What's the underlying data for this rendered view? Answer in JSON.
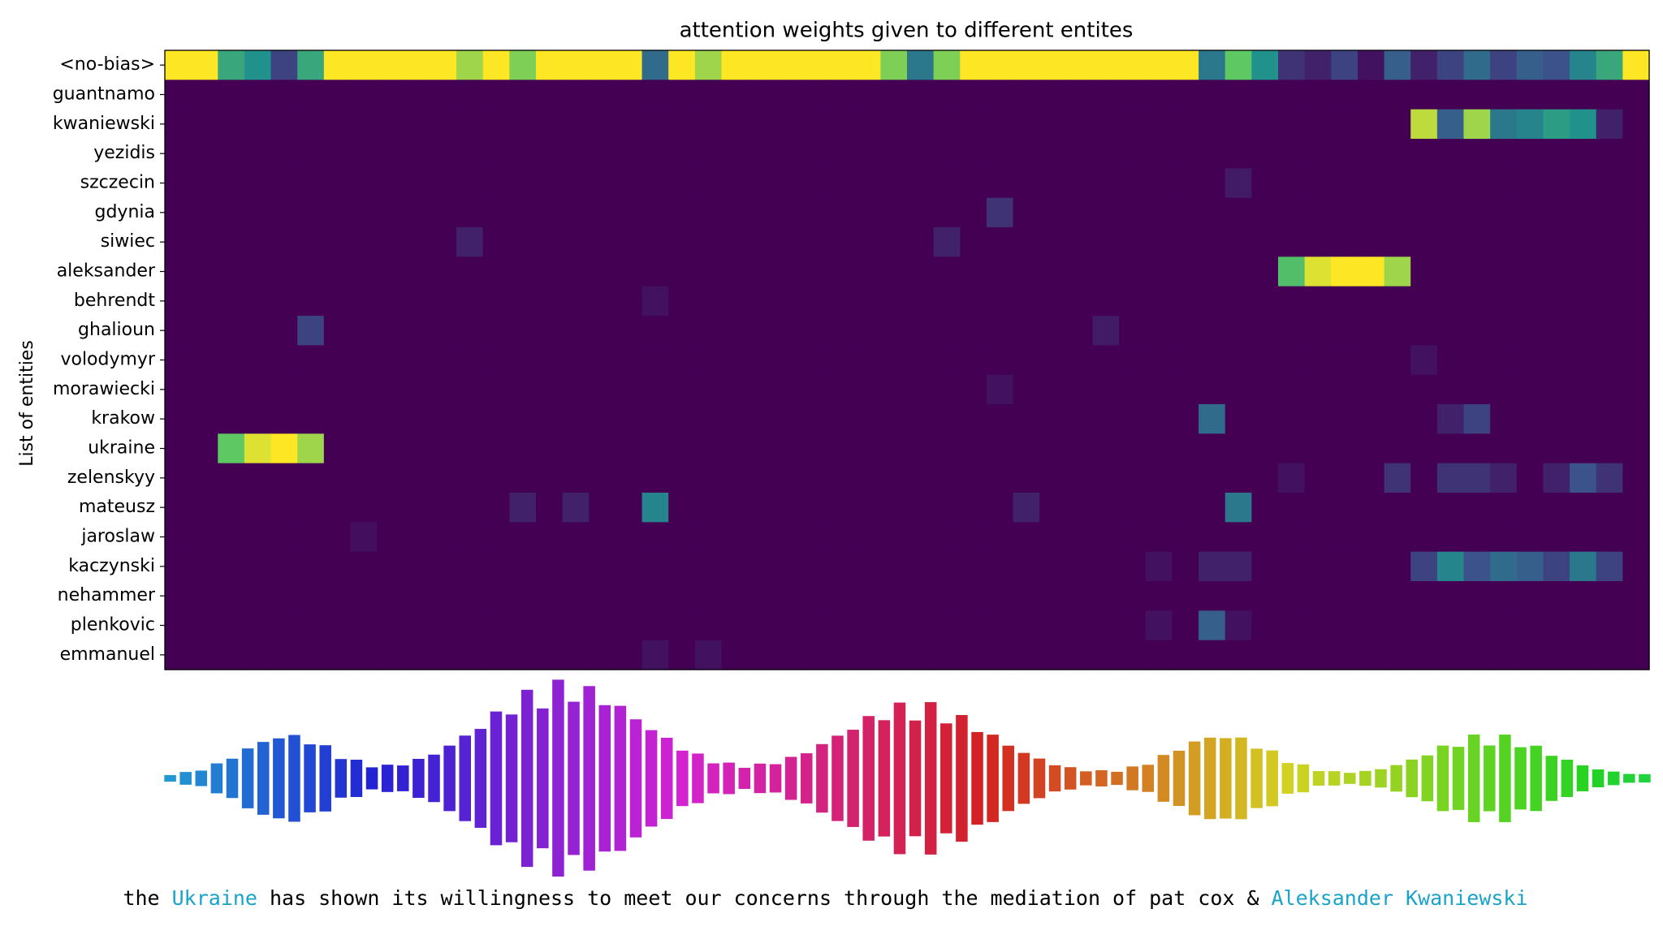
{
  "chart_data": {
    "type": "heatmap",
    "title": "attention weights given to different entites",
    "ylabel": "List of entities",
    "colormap": "viridis",
    "categories": [
      "<no-bias>",
      "guantnamo",
      "kwaniewski",
      "yezidis",
      "szczecin",
      "gdynia",
      "siwiec",
      "aleksander",
      "behrendt",
      "ghalioun",
      "volodymyr",
      "morawiecki",
      "krakow",
      "ukraine",
      "zelenskyy",
      "mateusz",
      "jaroslaw",
      "kaczynski",
      "nehammer",
      "plenkovic",
      "emmanuel"
    ],
    "values": [
      [
        1,
        1,
        0.6,
        0.5,
        0.2,
        0.6,
        1,
        1,
        1,
        1,
        1,
        0.85,
        1,
        0.8,
        1,
        1,
        1,
        1,
        0.35,
        1,
        0.85,
        1,
        1,
        1,
        1,
        1,
        1,
        0.8,
        0.4,
        0.8,
        1,
        1,
        1,
        1,
        1,
        1,
        1,
        1,
        1,
        0.4,
        0.75,
        0.5,
        0.15,
        0.1,
        0.2,
        0.05,
        0.3,
        0.1,
        0.2,
        0.35,
        0.2,
        0.3,
        0.25,
        0.45,
        0.6,
        1
      ],
      [
        0,
        0,
        0,
        0,
        0,
        0,
        0,
        0,
        0,
        0,
        0,
        0,
        0,
        0,
        0,
        0,
        0,
        0,
        0,
        0,
        0,
        0,
        0,
        0,
        0,
        0,
        0,
        0,
        0,
        0,
        0,
        0,
        0,
        0,
        0,
        0,
        0,
        0,
        0,
        0,
        0,
        0,
        0,
        0,
        0,
        0,
        0,
        0,
        0,
        0,
        0,
        0,
        0,
        0,
        0,
        0
      ],
      [
        0,
        0,
        0,
        0,
        0,
        0,
        0,
        0,
        0,
        0,
        0,
        0,
        0,
        0,
        0,
        0,
        0,
        0,
        0,
        0,
        0,
        0,
        0,
        0,
        0,
        0,
        0,
        0,
        0,
        0,
        0,
        0,
        0,
        0,
        0,
        0,
        0,
        0,
        0,
        0,
        0,
        0,
        0,
        0,
        0,
        0,
        0,
        0.9,
        0.3,
        0.85,
        0.4,
        0.45,
        0.55,
        0.5,
        0.1,
        0
      ],
      [
        0,
        0,
        0,
        0,
        0,
        0,
        0,
        0,
        0,
        0,
        0,
        0,
        0,
        0,
        0,
        0,
        0,
        0,
        0,
        0,
        0,
        0,
        0,
        0,
        0,
        0,
        0,
        0,
        0,
        0,
        0,
        0,
        0,
        0,
        0,
        0,
        0,
        0,
        0,
        0,
        0,
        0,
        0,
        0,
        0,
        0,
        0,
        0,
        0,
        0,
        0,
        0,
        0,
        0,
        0,
        0
      ],
      [
        0,
        0,
        0,
        0,
        0,
        0,
        0,
        0,
        0,
        0,
        0,
        0,
        0,
        0,
        0,
        0,
        0,
        0,
        0,
        0,
        0,
        0,
        0,
        0,
        0,
        0,
        0,
        0,
        0,
        0,
        0,
        0,
        0,
        0,
        0,
        0,
        0,
        0,
        0,
        0,
        0.08,
        0,
        0,
        0,
        0,
        0,
        0,
        0,
        0,
        0,
        0,
        0,
        0,
        0,
        0,
        0
      ],
      [
        0,
        0,
        0,
        0,
        0,
        0,
        0,
        0,
        0,
        0,
        0,
        0,
        0,
        0,
        0,
        0,
        0,
        0,
        0,
        0,
        0,
        0,
        0,
        0,
        0,
        0,
        0,
        0,
        0,
        0,
        0,
        0.15,
        0,
        0,
        0,
        0,
        0,
        0,
        0,
        0,
        0,
        0,
        0,
        0,
        0,
        0,
        0,
        0,
        0,
        0,
        0,
        0,
        0,
        0,
        0,
        0
      ],
      [
        0,
        0,
        0,
        0,
        0,
        0,
        0,
        0,
        0,
        0,
        0,
        0.1,
        0,
        0,
        0,
        0,
        0,
        0,
        0,
        0,
        0,
        0,
        0,
        0,
        0,
        0,
        0,
        0,
        0,
        0.1,
        0,
        0,
        0,
        0,
        0,
        0,
        0,
        0,
        0,
        0,
        0,
        0,
        0,
        0,
        0,
        0,
        0,
        0,
        0,
        0,
        0,
        0,
        0,
        0,
        0,
        0
      ],
      [
        0,
        0,
        0,
        0,
        0,
        0,
        0,
        0,
        0,
        0,
        0,
        0,
        0,
        0,
        0,
        0,
        0,
        0,
        0,
        0,
        0,
        0,
        0,
        0,
        0,
        0,
        0,
        0,
        0,
        0,
        0,
        0,
        0,
        0,
        0,
        0,
        0,
        0,
        0,
        0,
        0,
        0,
        0.7,
        0.95,
        1,
        1,
        0.85,
        0,
        0,
        0,
        0,
        0,
        0,
        0,
        0,
        0
      ],
      [
        0,
        0,
        0,
        0,
        0,
        0,
        0,
        0,
        0,
        0,
        0,
        0,
        0,
        0,
        0,
        0,
        0,
        0,
        0.05,
        0,
        0,
        0,
        0,
        0,
        0,
        0,
        0,
        0,
        0,
        0,
        0,
        0,
        0,
        0,
        0,
        0,
        0,
        0,
        0,
        0,
        0,
        0,
        0,
        0,
        0,
        0,
        0,
        0,
        0,
        0,
        0,
        0,
        0,
        0,
        0,
        0
      ],
      [
        0,
        0,
        0,
        0,
        0,
        0.2,
        0,
        0,
        0,
        0,
        0,
        0,
        0,
        0,
        0,
        0,
        0,
        0,
        0,
        0,
        0,
        0,
        0,
        0,
        0,
        0,
        0,
        0,
        0,
        0,
        0,
        0,
        0,
        0,
        0,
        0.08,
        0,
        0,
        0,
        0,
        0,
        0,
        0,
        0,
        0,
        0,
        0,
        0,
        0,
        0,
        0,
        0,
        0,
        0,
        0,
        0
      ],
      [
        0,
        0,
        0,
        0,
        0,
        0,
        0,
        0,
        0,
        0,
        0,
        0,
        0,
        0,
        0,
        0,
        0,
        0,
        0,
        0,
        0,
        0,
        0,
        0,
        0,
        0,
        0,
        0,
        0,
        0,
        0,
        0,
        0,
        0,
        0,
        0,
        0,
        0,
        0,
        0,
        0,
        0,
        0,
        0,
        0,
        0,
        0,
        0.05,
        0,
        0,
        0,
        0,
        0,
        0,
        0,
        0
      ],
      [
        0,
        0,
        0,
        0,
        0,
        0,
        0,
        0,
        0,
        0,
        0,
        0,
        0,
        0,
        0,
        0,
        0,
        0,
        0,
        0,
        0,
        0,
        0,
        0,
        0,
        0,
        0,
        0,
        0,
        0,
        0,
        0.05,
        0,
        0,
        0,
        0,
        0,
        0,
        0,
        0,
        0,
        0,
        0,
        0,
        0,
        0,
        0,
        0,
        0,
        0,
        0,
        0,
        0,
        0,
        0,
        0
      ],
      [
        0,
        0,
        0,
        0,
        0,
        0,
        0,
        0,
        0,
        0,
        0,
        0,
        0,
        0,
        0,
        0,
        0,
        0,
        0,
        0,
        0,
        0,
        0,
        0,
        0,
        0,
        0,
        0,
        0,
        0,
        0,
        0,
        0,
        0,
        0,
        0,
        0,
        0,
        0,
        0.35,
        0,
        0,
        0,
        0,
        0,
        0,
        0,
        0,
        0.1,
        0.2,
        0,
        0,
        0,
        0,
        0,
        0
      ],
      [
        0,
        0,
        0.75,
        0.95,
        1,
        0.85,
        0,
        0,
        0,
        0,
        0,
        0,
        0,
        0,
        0,
        0,
        0,
        0,
        0,
        0,
        0,
        0,
        0,
        0,
        0,
        0,
        0,
        0,
        0,
        0,
        0,
        0,
        0,
        0,
        0,
        0,
        0,
        0,
        0,
        0,
        0,
        0,
        0,
        0,
        0,
        0,
        0,
        0,
        0,
        0,
        0,
        0,
        0,
        0,
        0,
        0
      ],
      [
        0,
        0,
        0,
        0,
        0,
        0,
        0,
        0,
        0,
        0,
        0,
        0,
        0,
        0,
        0,
        0,
        0,
        0,
        0,
        0,
        0,
        0,
        0,
        0,
        0,
        0,
        0,
        0,
        0,
        0,
        0,
        0,
        0,
        0,
        0,
        0,
        0,
        0,
        0,
        0,
        0,
        0,
        0.05,
        0,
        0,
        0,
        0.15,
        0,
        0.15,
        0.15,
        0.1,
        0,
        0.1,
        0.25,
        0.15,
        0
      ],
      [
        0,
        0,
        0,
        0,
        0,
        0,
        0,
        0,
        0,
        0,
        0,
        0,
        0,
        0.1,
        0,
        0.1,
        0,
        0,
        0.45,
        0,
        0,
        0,
        0,
        0,
        0,
        0,
        0,
        0,
        0,
        0,
        0,
        0,
        0.1,
        0,
        0,
        0,
        0,
        0,
        0,
        0,
        0.4,
        0,
        0,
        0,
        0,
        0,
        0,
        0,
        0,
        0,
        0,
        0,
        0,
        0,
        0,
        0
      ],
      [
        0,
        0,
        0,
        0,
        0,
        0,
        0,
        0.04,
        0,
        0,
        0,
        0,
        0,
        0,
        0,
        0,
        0,
        0,
        0,
        0,
        0,
        0,
        0,
        0,
        0,
        0,
        0,
        0,
        0,
        0,
        0,
        0,
        0,
        0,
        0,
        0,
        0,
        0,
        0,
        0,
        0,
        0,
        0,
        0,
        0,
        0,
        0,
        0,
        0,
        0,
        0,
        0,
        0,
        0,
        0,
        0
      ],
      [
        0,
        0,
        0,
        0,
        0,
        0,
        0,
        0,
        0,
        0,
        0,
        0,
        0,
        0,
        0,
        0,
        0,
        0,
        0,
        0,
        0,
        0,
        0,
        0,
        0,
        0,
        0,
        0,
        0,
        0,
        0,
        0,
        0,
        0,
        0,
        0,
        0,
        0.05,
        0,
        0.1,
        0.1,
        0,
        0,
        0,
        0,
        0,
        0,
        0.2,
        0.45,
        0.25,
        0.35,
        0.3,
        0.2,
        0.4,
        0.2,
        0
      ],
      [
        0,
        0,
        0,
        0,
        0,
        0,
        0,
        0,
        0,
        0,
        0,
        0,
        0,
        0,
        0,
        0,
        0,
        0,
        0,
        0,
        0,
        0,
        0,
        0,
        0,
        0,
        0,
        0,
        0,
        0,
        0,
        0,
        0,
        0,
        0,
        0,
        0,
        0,
        0,
        0,
        0,
        0,
        0,
        0,
        0,
        0,
        0,
        0,
        0,
        0,
        0,
        0,
        0,
        0,
        0,
        0
      ],
      [
        0,
        0,
        0,
        0,
        0,
        0,
        0,
        0,
        0,
        0,
        0,
        0,
        0,
        0,
        0,
        0,
        0,
        0,
        0,
        0,
        0,
        0,
        0,
        0,
        0,
        0,
        0,
        0,
        0,
        0,
        0,
        0,
        0,
        0,
        0,
        0,
        0,
        0.05,
        0,
        0.3,
        0.05,
        0,
        0,
        0,
        0,
        0,
        0,
        0,
        0,
        0,
        0,
        0,
        0,
        0,
        0,
        0
      ],
      [
        0,
        0,
        0,
        0,
        0,
        0,
        0,
        0,
        0,
        0,
        0,
        0,
        0,
        0,
        0,
        0,
        0,
        0,
        0.05,
        0,
        0.05,
        0,
        0,
        0,
        0,
        0,
        0,
        0,
        0,
        0,
        0,
        0,
        0,
        0,
        0,
        0,
        0,
        0,
        0,
        0,
        0,
        0,
        0,
        0,
        0,
        0,
        0,
        0,
        0,
        0,
        0,
        0,
        0,
        0,
        0,
        0
      ]
    ],
    "sentence": [
      {
        "text": "the",
        "entity": false
      },
      {
        "text": "Ukraine",
        "entity": true
      },
      {
        "text": "has",
        "entity": false
      },
      {
        "text": "shown",
        "entity": false
      },
      {
        "text": "its",
        "entity": false
      },
      {
        "text": "willingness",
        "entity": false
      },
      {
        "text": "to",
        "entity": false
      },
      {
        "text": "meet",
        "entity": false
      },
      {
        "text": "our",
        "entity": false
      },
      {
        "text": "concerns",
        "entity": false
      },
      {
        "text": "through",
        "entity": false
      },
      {
        "text": "the",
        "entity": false
      },
      {
        "text": "mediation",
        "entity": false
      },
      {
        "text": "of",
        "entity": false
      },
      {
        "text": "pat",
        "entity": false
      },
      {
        "text": "cox",
        "entity": false
      },
      {
        "text": "&",
        "entity": false
      },
      {
        "text": "Aleksander",
        "entity": true
      },
      {
        "text": "Kwaniewski",
        "entity": true
      }
    ],
    "entity_color": "#1aa3c9"
  }
}
